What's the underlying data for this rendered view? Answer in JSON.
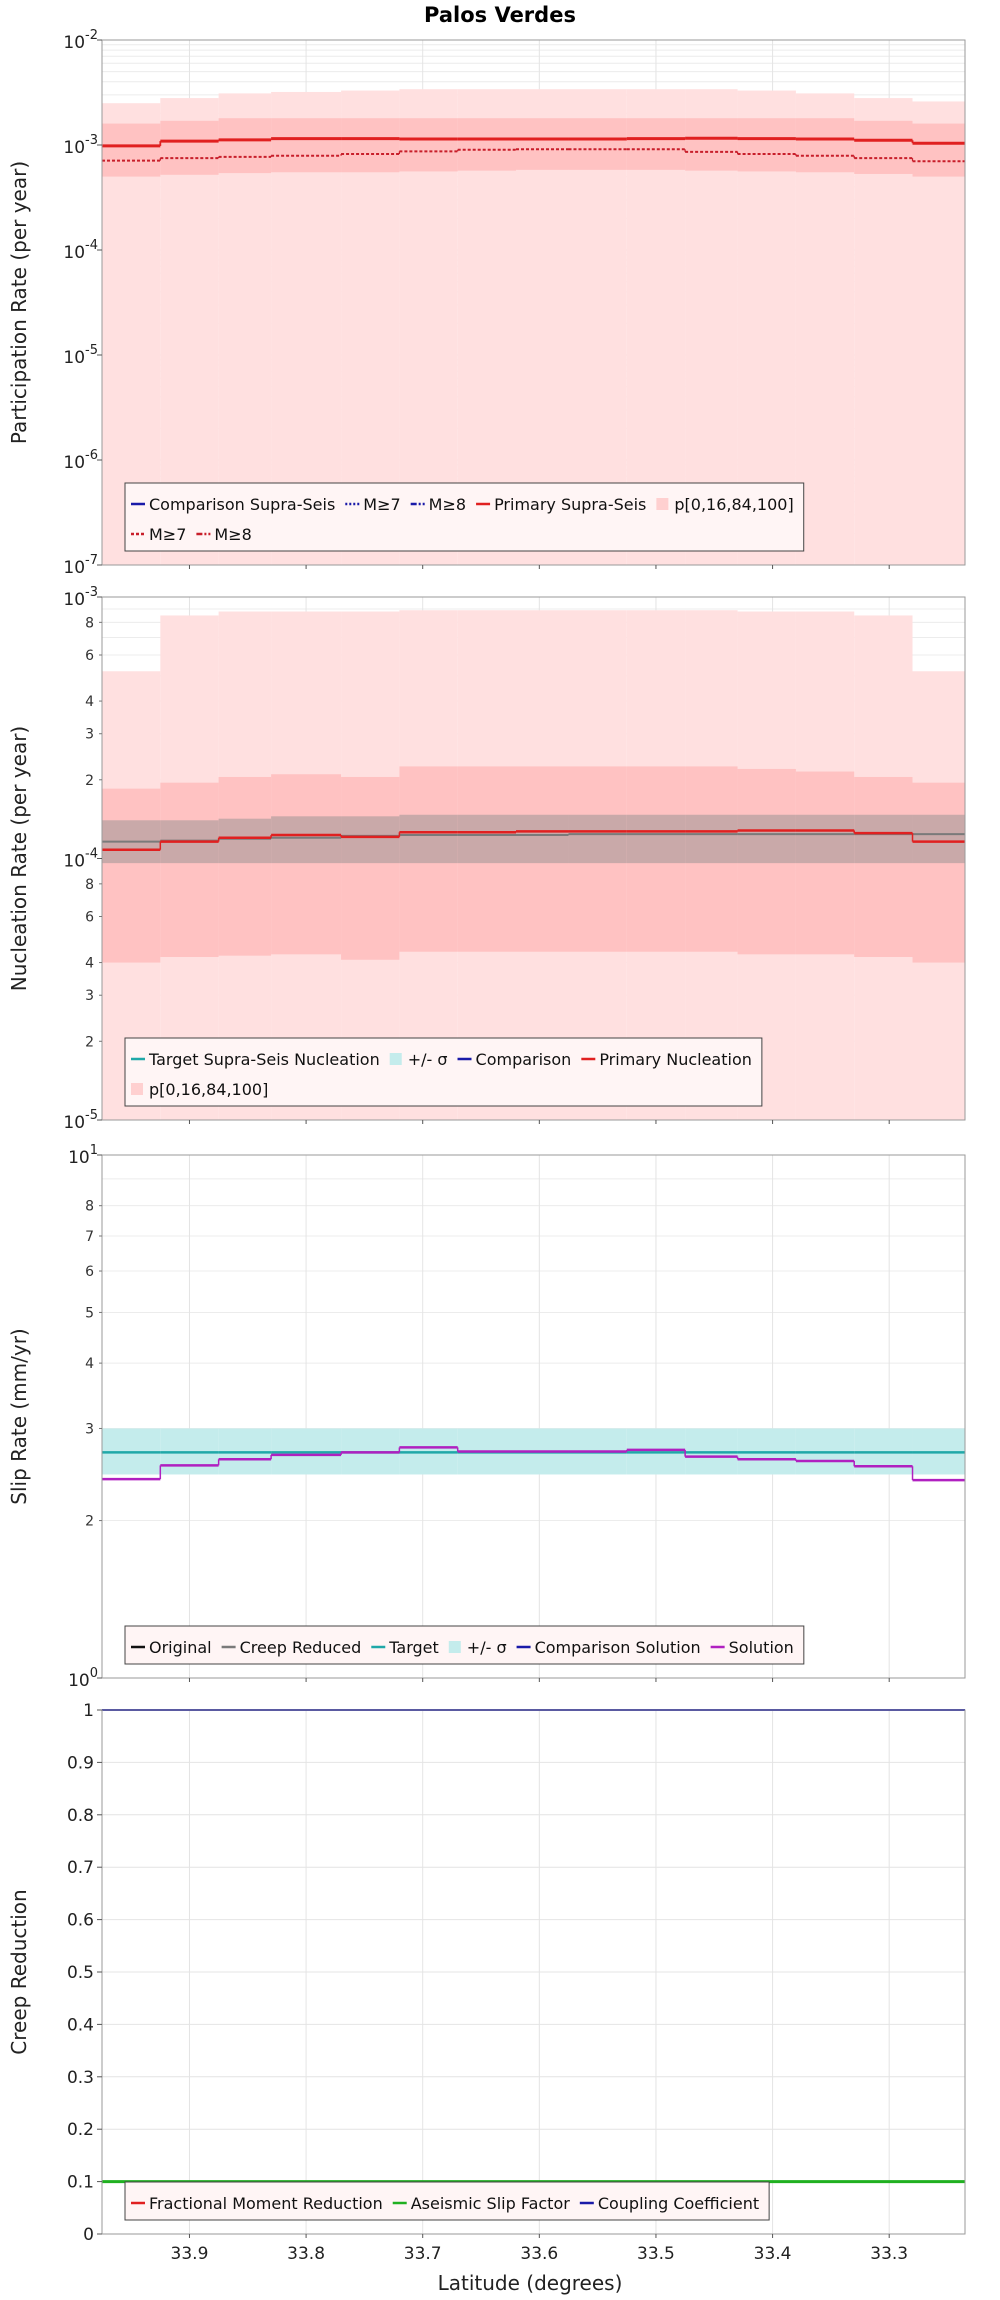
{
  "figure_title": "Palos Verdes",
  "xlabel": "Latitude (degrees)",
  "x_ticks": [
    33.9,
    33.8,
    33.7,
    33.6,
    33.5,
    33.4,
    33.3
  ],
  "x_tick_labels": [
    "33.9",
    "33.8",
    "33.7",
    "33.6",
    "33.5",
    "33.4",
    "33.3"
  ],
  "colors": {
    "band_outer": "#ffe0e0",
    "band_inner": "#ffc2c2",
    "red": "#e02020",
    "dark_red": "#c81e2a",
    "teal": "#20a8a8",
    "teal_band": "#c4ecec",
    "gray": "#7a7a7a",
    "gray_band": "#c9a9a9",
    "magenta": "#b020c0",
    "blue": "#1a1aa8",
    "green": "#20b020",
    "black": "#111111"
  },
  "chart_data": [
    {
      "id": "participation",
      "type": "line",
      "ylabel": "Participation Rate (per year)",
      "yscale": "log",
      "ylim": [
        1e-07,
        0.01
      ],
      "xlim": [
        33.975,
        33.235
      ],
      "y_ticks": [
        {
          "v": 1e-07,
          "base": "10",
          "exp": "-7"
        },
        {
          "v": 1e-06,
          "base": "10",
          "exp": "-6"
        },
        {
          "v": 1e-05,
          "base": "10",
          "exp": "-5"
        },
        {
          "v": 0.0001,
          "base": "10",
          "exp": "-4"
        },
        {
          "v": 0.001,
          "base": "10",
          "exp": "-3"
        },
        {
          "v": 0.01,
          "base": "10",
          "exp": "-2"
        }
      ],
      "x_edges": [
        33.975,
        33.925,
        33.875,
        33.83,
        33.77,
        33.72,
        33.67,
        33.62,
        33.575,
        33.525,
        33.475,
        33.43,
        33.38,
        33.33,
        33.28,
        33.235
      ],
      "bands": [
        {
          "label": "p[0,16,84,100]",
          "low": [
            1e-07,
            1e-07,
            1e-07,
            1e-07,
            1e-07,
            1e-07,
            1e-07,
            1e-07,
            1e-07,
            1e-07,
            1e-07,
            1e-07,
            1e-07,
            1e-07,
            1e-07
          ],
          "high": [
            0.0025,
            0.0028,
            0.0031,
            0.0032,
            0.0033,
            0.0034,
            0.0034,
            0.0034,
            0.0034,
            0.0034,
            0.0034,
            0.0033,
            0.0031,
            0.0028,
            0.0026
          ],
          "color": "#ffe0e0"
        },
        {
          "low": [
            0.0005,
            0.00052,
            0.00054,
            0.00055,
            0.00055,
            0.00056,
            0.00057,
            0.00058,
            0.00058,
            0.00058,
            0.00057,
            0.00056,
            0.00055,
            0.00053,
            0.0005
          ],
          "high": [
            0.0016,
            0.0017,
            0.0018,
            0.0018,
            0.0018,
            0.0018,
            0.0018,
            0.0018,
            0.0018,
            0.0018,
            0.0018,
            0.0018,
            0.0018,
            0.0017,
            0.0016
          ],
          "color": "#ffc2c2"
        }
      ],
      "series": [
        {
          "name": "Primary Supra-Seis",
          "values": [
            0.00098,
            0.00109,
            0.00112,
            0.00115,
            0.00115,
            0.00114,
            0.00114,
            0.00114,
            0.00114,
            0.00115,
            0.00116,
            0.00115,
            0.00114,
            0.00111,
            0.00104
          ],
          "color": "#e02020",
          "dash": "",
          "width": 3
        },
        {
          "name": "M≥7",
          "values": [
            0.00071,
            0.00075,
            0.00077,
            0.00079,
            0.00082,
            0.00087,
            0.0009,
            0.00091,
            0.00091,
            0.00091,
            0.00086,
            0.00082,
            0.00079,
            0.00075,
            0.0007
          ],
          "color": "#c81e2a",
          "dash": "3,2",
          "width": 2
        }
      ],
      "legend_rows": [
        [
          {
            "label": "Comparison Supra-Seis",
            "kind": "line",
            "color": "#1a1aa8",
            "dash": ""
          },
          {
            "label": "M≥7",
            "kind": "line",
            "color": "#1a1aa8",
            "dash": "2,2"
          },
          {
            "label": "M≥8",
            "kind": "line",
            "color": "#1a1aa8",
            "dash": "6,2,2,2"
          },
          {
            "label": "Primary Supra-Seis",
            "kind": "line",
            "color": "#e02020",
            "dash": ""
          },
          {
            "label": "p[0,16,84,100]",
            "kind": "patch",
            "color": "#ffd0d0",
            "dash": ""
          }
        ],
        [
          {
            "label": "M≥7",
            "kind": "line",
            "color": "#c81e2a",
            "dash": "3,2"
          },
          {
            "label": "M≥8",
            "kind": "line",
            "color": "#c81e2a",
            "dash": "6,2,2,2"
          }
        ]
      ]
    },
    {
      "id": "nucleation",
      "type": "line",
      "ylabel": "Nucleation Rate (per year)",
      "yscale": "log",
      "ylim": [
        1e-05,
        0.001
      ],
      "xlim": [
        33.975,
        33.235
      ],
      "y_ticks": [
        {
          "v": 1e-05,
          "base": "10",
          "exp": "-5"
        },
        {
          "v": 0.0001,
          "base": "10",
          "exp": "-4"
        },
        {
          "v": 0.001,
          "base": "10",
          "exp": "-3"
        }
      ],
      "y_minor_ticks": [
        {
          "v": 2e-05,
          "label": "2"
        },
        {
          "v": 3e-05,
          "label": "3"
        },
        {
          "v": 4e-05,
          "label": "4"
        },
        {
          "v": 6e-05,
          "label": "6"
        },
        {
          "v": 8e-05,
          "label": "8"
        },
        {
          "v": 0.0002,
          "label": "2"
        },
        {
          "v": 0.0003,
          "label": "3"
        },
        {
          "v": 0.0004,
          "label": "4"
        },
        {
          "v": 0.0006,
          "label": "6"
        },
        {
          "v": 0.0008,
          "label": "8"
        }
      ],
      "x_edges": [
        33.975,
        33.925,
        33.875,
        33.83,
        33.77,
        33.72,
        33.67,
        33.62,
        33.575,
        33.525,
        33.475,
        33.43,
        33.38,
        33.33,
        33.28,
        33.235
      ],
      "bands": [
        {
          "label": "p[0,16,84,100]",
          "low": [
            1e-05,
            1e-05,
            1e-05,
            1e-05,
            1e-05,
            1e-05,
            1e-05,
            1e-05,
            1e-05,
            1e-05,
            1e-05,
            1e-05,
            1e-05,
            1e-05,
            1e-05
          ],
          "high": [
            0.00052,
            0.00085,
            0.00088,
            0.00088,
            0.00088,
            0.00089,
            0.00089,
            0.00089,
            0.00089,
            0.00089,
            0.00089,
            0.00088,
            0.00088,
            0.00085,
            0.00052
          ],
          "color": "#ffe0e0"
        },
        {
          "low": [
            4e-05,
            4.2e-05,
            4.25e-05,
            4.3e-05,
            4.1e-05,
            4.4e-05,
            4.4e-05,
            4.4e-05,
            4.4e-05,
            4.4e-05,
            4.4e-05,
            4.3e-05,
            4.3e-05,
            4.2e-05,
            4e-05
          ],
          "high": [
            0.000185,
            0.000195,
            0.000205,
            0.00021,
            0.000205,
            0.000225,
            0.000225,
            0.000225,
            0.000225,
            0.000225,
            0.000225,
            0.00022,
            0.000215,
            0.000205,
            0.000195
          ],
          "color": "#ffc2c2"
        },
        {
          "label": "+/- σ",
          "low": [
            9.6e-05,
            9.6e-05,
            9.6e-05,
            9.6e-05,
            9.6e-05,
            9.6e-05,
            9.6e-05,
            9.6e-05,
            9.6e-05,
            9.6e-05,
            9.6e-05,
            9.6e-05,
            9.6e-05,
            9.6e-05,
            9.6e-05
          ],
          "high": [
            0.00014,
            0.00014,
            0.000142,
            0.000145,
            0.000145,
            0.000147,
            0.000147,
            0.000147,
            0.000147,
            0.000147,
            0.000147,
            0.000147,
            0.000147,
            0.000147,
            0.000147
          ],
          "color": "#c9a9a9"
        }
      ],
      "series": [
        {
          "name": "Target Supra-Seis Nucleation",
          "values": [
            0.000116,
            0.000117,
            0.000119,
            0.00012,
            0.000122,
            0.000123,
            0.000123,
            0.000123,
            0.000124,
            0.000124,
            0.000124,
            0.000124,
            0.000124,
            0.000124,
            0.000124
          ],
          "color": "#7a7a7a",
          "dash": "",
          "width": 2
        },
        {
          "name": "Primary Nucleation",
          "values": [
            0.000108,
            0.000116,
            0.00012,
            0.000123,
            0.000121,
            0.000126,
            0.000126,
            0.000127,
            0.000127,
            0.000127,
            0.000127,
            0.000128,
            0.000128,
            0.000125,
            0.000116
          ],
          "color": "#e02020",
          "dash": "",
          "width": 2.5
        }
      ],
      "legend_rows": [
        [
          {
            "label": "Target Supra-Seis Nucleation",
            "kind": "line",
            "color": "#20a8a8",
            "dash": ""
          },
          {
            "label": "+/- σ",
            "kind": "patch",
            "color": "#c4ecec",
            "dash": ""
          },
          {
            "label": "Comparison",
            "kind": "line",
            "color": "#1a1aa8",
            "dash": ""
          },
          {
            "label": "Primary Nucleation",
            "kind": "line",
            "color": "#e02020",
            "dash": ""
          }
        ],
        [
          {
            "label": "p[0,16,84,100]",
            "kind": "patch",
            "color": "#ffd0d0",
            "dash": ""
          }
        ]
      ]
    },
    {
      "id": "slip",
      "type": "line",
      "ylabel": "Slip Rate (mm/yr)",
      "yscale": "log",
      "ylim": [
        1,
        10
      ],
      "xlim": [
        33.975,
        33.235
      ],
      "y_ticks": [
        {
          "v": 1,
          "base": "10",
          "exp": "0"
        },
        {
          "v": 10,
          "base": "10",
          "exp": "1"
        }
      ],
      "y_minor_ticks": [
        {
          "v": 2,
          "label": "2"
        },
        {
          "v": 3,
          "label": "3"
        },
        {
          "v": 4,
          "label": "4"
        },
        {
          "v": 5,
          "label": "5"
        },
        {
          "v": 6,
          "label": "6"
        },
        {
          "v": 7,
          "label": "7"
        },
        {
          "v": 8,
          "label": "8"
        }
      ],
      "x_edges": [
        33.975,
        33.925,
        33.875,
        33.83,
        33.77,
        33.72,
        33.67,
        33.62,
        33.575,
        33.525,
        33.475,
        33.43,
        33.38,
        33.33,
        33.28,
        33.235
      ],
      "bands": [
        {
          "label": "+/- σ",
          "low": [
            2.45,
            2.45,
            2.45,
            2.45,
            2.45,
            2.45,
            2.45,
            2.45,
            2.45,
            2.45,
            2.45,
            2.45,
            2.45,
            2.45,
            2.45
          ],
          "high": [
            3.0,
            3.0,
            3.0,
            3.0,
            3.0,
            3.0,
            3.0,
            3.0,
            3.0,
            3.0,
            3.0,
            3.0,
            3.0,
            3.0,
            3.0
          ],
          "color": "#c4ecec"
        }
      ],
      "series": [
        {
          "name": "Target",
          "values": [
            2.7,
            2.7,
            2.7,
            2.7,
            2.7,
            2.7,
            2.7,
            2.7,
            2.7,
            2.7,
            2.7,
            2.7,
            2.7,
            2.7,
            2.7
          ],
          "color": "#20a8a8",
          "dash": "",
          "width": 2.5
        },
        {
          "name": "Solution",
          "values": [
            2.4,
            2.55,
            2.62,
            2.67,
            2.7,
            2.76,
            2.71,
            2.71,
            2.71,
            2.73,
            2.65,
            2.62,
            2.6,
            2.54,
            2.39
          ],
          "color": "#b020c0",
          "dash": "",
          "width": 2.5
        }
      ],
      "legend_rows": [
        [
          {
            "label": "Original",
            "kind": "line",
            "color": "#111111",
            "dash": ""
          },
          {
            "label": "Creep Reduced",
            "kind": "line",
            "color": "#7a7a7a",
            "dash": ""
          },
          {
            "label": "Target",
            "kind": "line",
            "color": "#20a8a8",
            "dash": ""
          },
          {
            "label": "+/- σ",
            "kind": "patch",
            "color": "#c4ecec",
            "dash": ""
          },
          {
            "label": "Comparison Solution",
            "kind": "line",
            "color": "#1a1aa8",
            "dash": ""
          },
          {
            "label": "Solution",
            "kind": "line",
            "color": "#b020c0",
            "dash": ""
          }
        ]
      ]
    },
    {
      "id": "creep",
      "type": "line",
      "ylabel": "Creep Reduction",
      "yscale": "linear",
      "ylim": [
        0,
        1
      ],
      "xlim": [
        33.975,
        33.235
      ],
      "y_ticks": [
        {
          "v": 0,
          "label": "0"
        },
        {
          "v": 0.1,
          "label": "0.1"
        },
        {
          "v": 0.2,
          "label": "0.2"
        },
        {
          "v": 0.3,
          "label": "0.3"
        },
        {
          "v": 0.4,
          "label": "0.4"
        },
        {
          "v": 0.5,
          "label": "0.5"
        },
        {
          "v": 0.6,
          "label": "0.6"
        },
        {
          "v": 0.7,
          "label": "0.7"
        },
        {
          "v": 0.8,
          "label": "0.8"
        },
        {
          "v": 0.9,
          "label": "0.9"
        },
        {
          "v": 1,
          "label": "1"
        }
      ],
      "x_edges": [
        33.975,
        33.235
      ],
      "bands": [],
      "series": [
        {
          "name": "Aseismic Slip Factor",
          "values": [
            0.1
          ],
          "color": "#20b020",
          "dash": "",
          "width": 3
        },
        {
          "name": "Coupling Coefficient",
          "values": [
            1.0
          ],
          "color": "#1a1aa8",
          "dash": "",
          "width": 2
        }
      ],
      "legend_rows": [
        [
          {
            "label": "Fractional Moment Reduction",
            "kind": "line",
            "color": "#e02020",
            "dash": ""
          },
          {
            "label": "Aseismic Slip Factor",
            "kind": "line",
            "color": "#20b020",
            "dash": ""
          },
          {
            "label": "Coupling Coefficient",
            "kind": "line",
            "color": "#1a1aa8",
            "dash": ""
          }
        ]
      ]
    }
  ]
}
